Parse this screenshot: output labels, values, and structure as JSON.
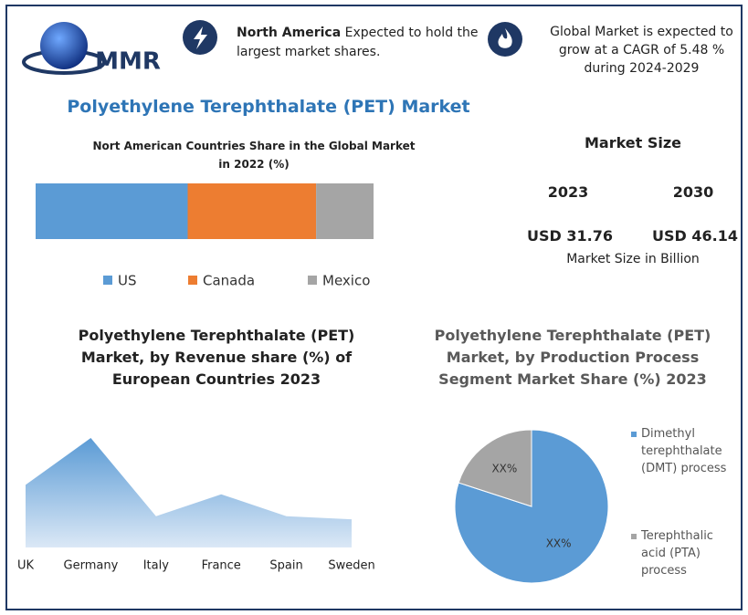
{
  "header": {
    "logo": "MMR",
    "highlight_bold": "North America",
    "highlight_text": "Expected to hold the largest market shares.",
    "cagr": "Global Market is expected to grow at a CAGR of 5.48 % during 2024-2029"
  },
  "title": "Polyethylene Terephthalate (PET) Market",
  "market_size": {
    "title": "Market Size",
    "years": [
      "2023",
      "2030"
    ],
    "values": [
      "USD 31.76",
      "USD 46.14"
    ],
    "note": "Market Size in Billion"
  },
  "chart_data": [
    {
      "type": "bar",
      "orientation": "horizontal",
      "stacked": true,
      "title": "Nort American Countries Share in the Global Market in 2022  (%)",
      "series": [
        {
          "name": "US",
          "color": "#5b9bd5",
          "values": [
            45
          ]
        },
        {
          "name": "Canada",
          "color": "#ed7d31",
          "values": [
            38
          ]
        },
        {
          "name": "Mexico",
          "color": "#a5a5a5",
          "values": [
            17
          ]
        }
      ]
    },
    {
      "type": "area",
      "title": "Polyethylene Terephthalate (PET) Market, by Revenue share (%) of European Countries 2023",
      "categories": [
        "UK",
        "Germany",
        "Italy",
        "France",
        "Spain",
        "Sweden"
      ],
      "values": [
        20,
        35,
        10,
        17,
        10,
        9
      ],
      "color": "#5b9bd5"
    },
    {
      "type": "pie",
      "title": "Polyethylene Terephthalate (PET) Market, by Production Process Segment Market Share (%) 2023",
      "categories": [
        "Dimethyl terephthalate (DMT) process",
        "Terephthalic acid (PTA) process"
      ],
      "values": [
        80,
        20
      ],
      "value_labels": [
        "XX%",
        "XX%"
      ],
      "colors": [
        "#5b9bd5",
        "#a5a5a5"
      ]
    }
  ]
}
